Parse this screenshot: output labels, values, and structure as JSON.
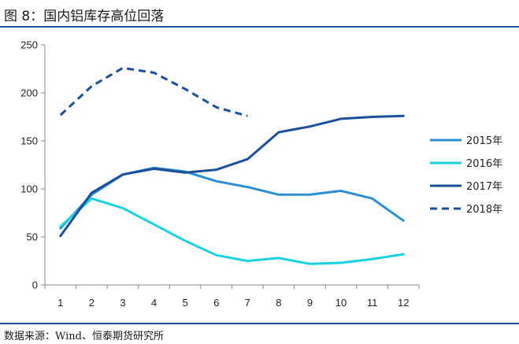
{
  "header": {
    "title": "图 8：国内铝库存高位回落"
  },
  "footer": {
    "source": "数据来源：Wind、恒泰期货研究所"
  },
  "chart_data": {
    "type": "line",
    "title": "",
    "xlabel": "",
    "ylabel": "",
    "x": [
      1,
      2,
      3,
      4,
      5,
      6,
      7,
      8,
      9,
      10,
      11,
      12
    ],
    "ylim": [
      0,
      250
    ],
    "yticks": [
      0,
      50,
      100,
      150,
      200,
      250
    ],
    "grid": false,
    "legend": "right",
    "series": [
      {
        "name": "2015年",
        "color": "#2b8fd1",
        "dash": false,
        "values": [
          59,
          94,
          115,
          122,
          118,
          108,
          102,
          94,
          94,
          98,
          90,
          67
        ]
      },
      {
        "name": "2016年",
        "color": "#19d2df",
        "dash": false,
        "values": [
          61,
          90,
          80,
          63,
          46,
          31,
          25,
          28,
          22,
          23,
          27,
          32
        ]
      },
      {
        "name": "2017年",
        "color": "#1a4f9c",
        "dash": false,
        "values": [
          51,
          96,
          115,
          121,
          117,
          120,
          131,
          159,
          165,
          173,
          175,
          176
        ]
      },
      {
        "name": "2018年",
        "color": "#1a4f9c",
        "dash": true,
        "values": [
          177,
          207,
          226,
          221,
          204,
          185,
          176,
          null,
          null,
          null,
          null,
          null
        ]
      }
    ]
  }
}
